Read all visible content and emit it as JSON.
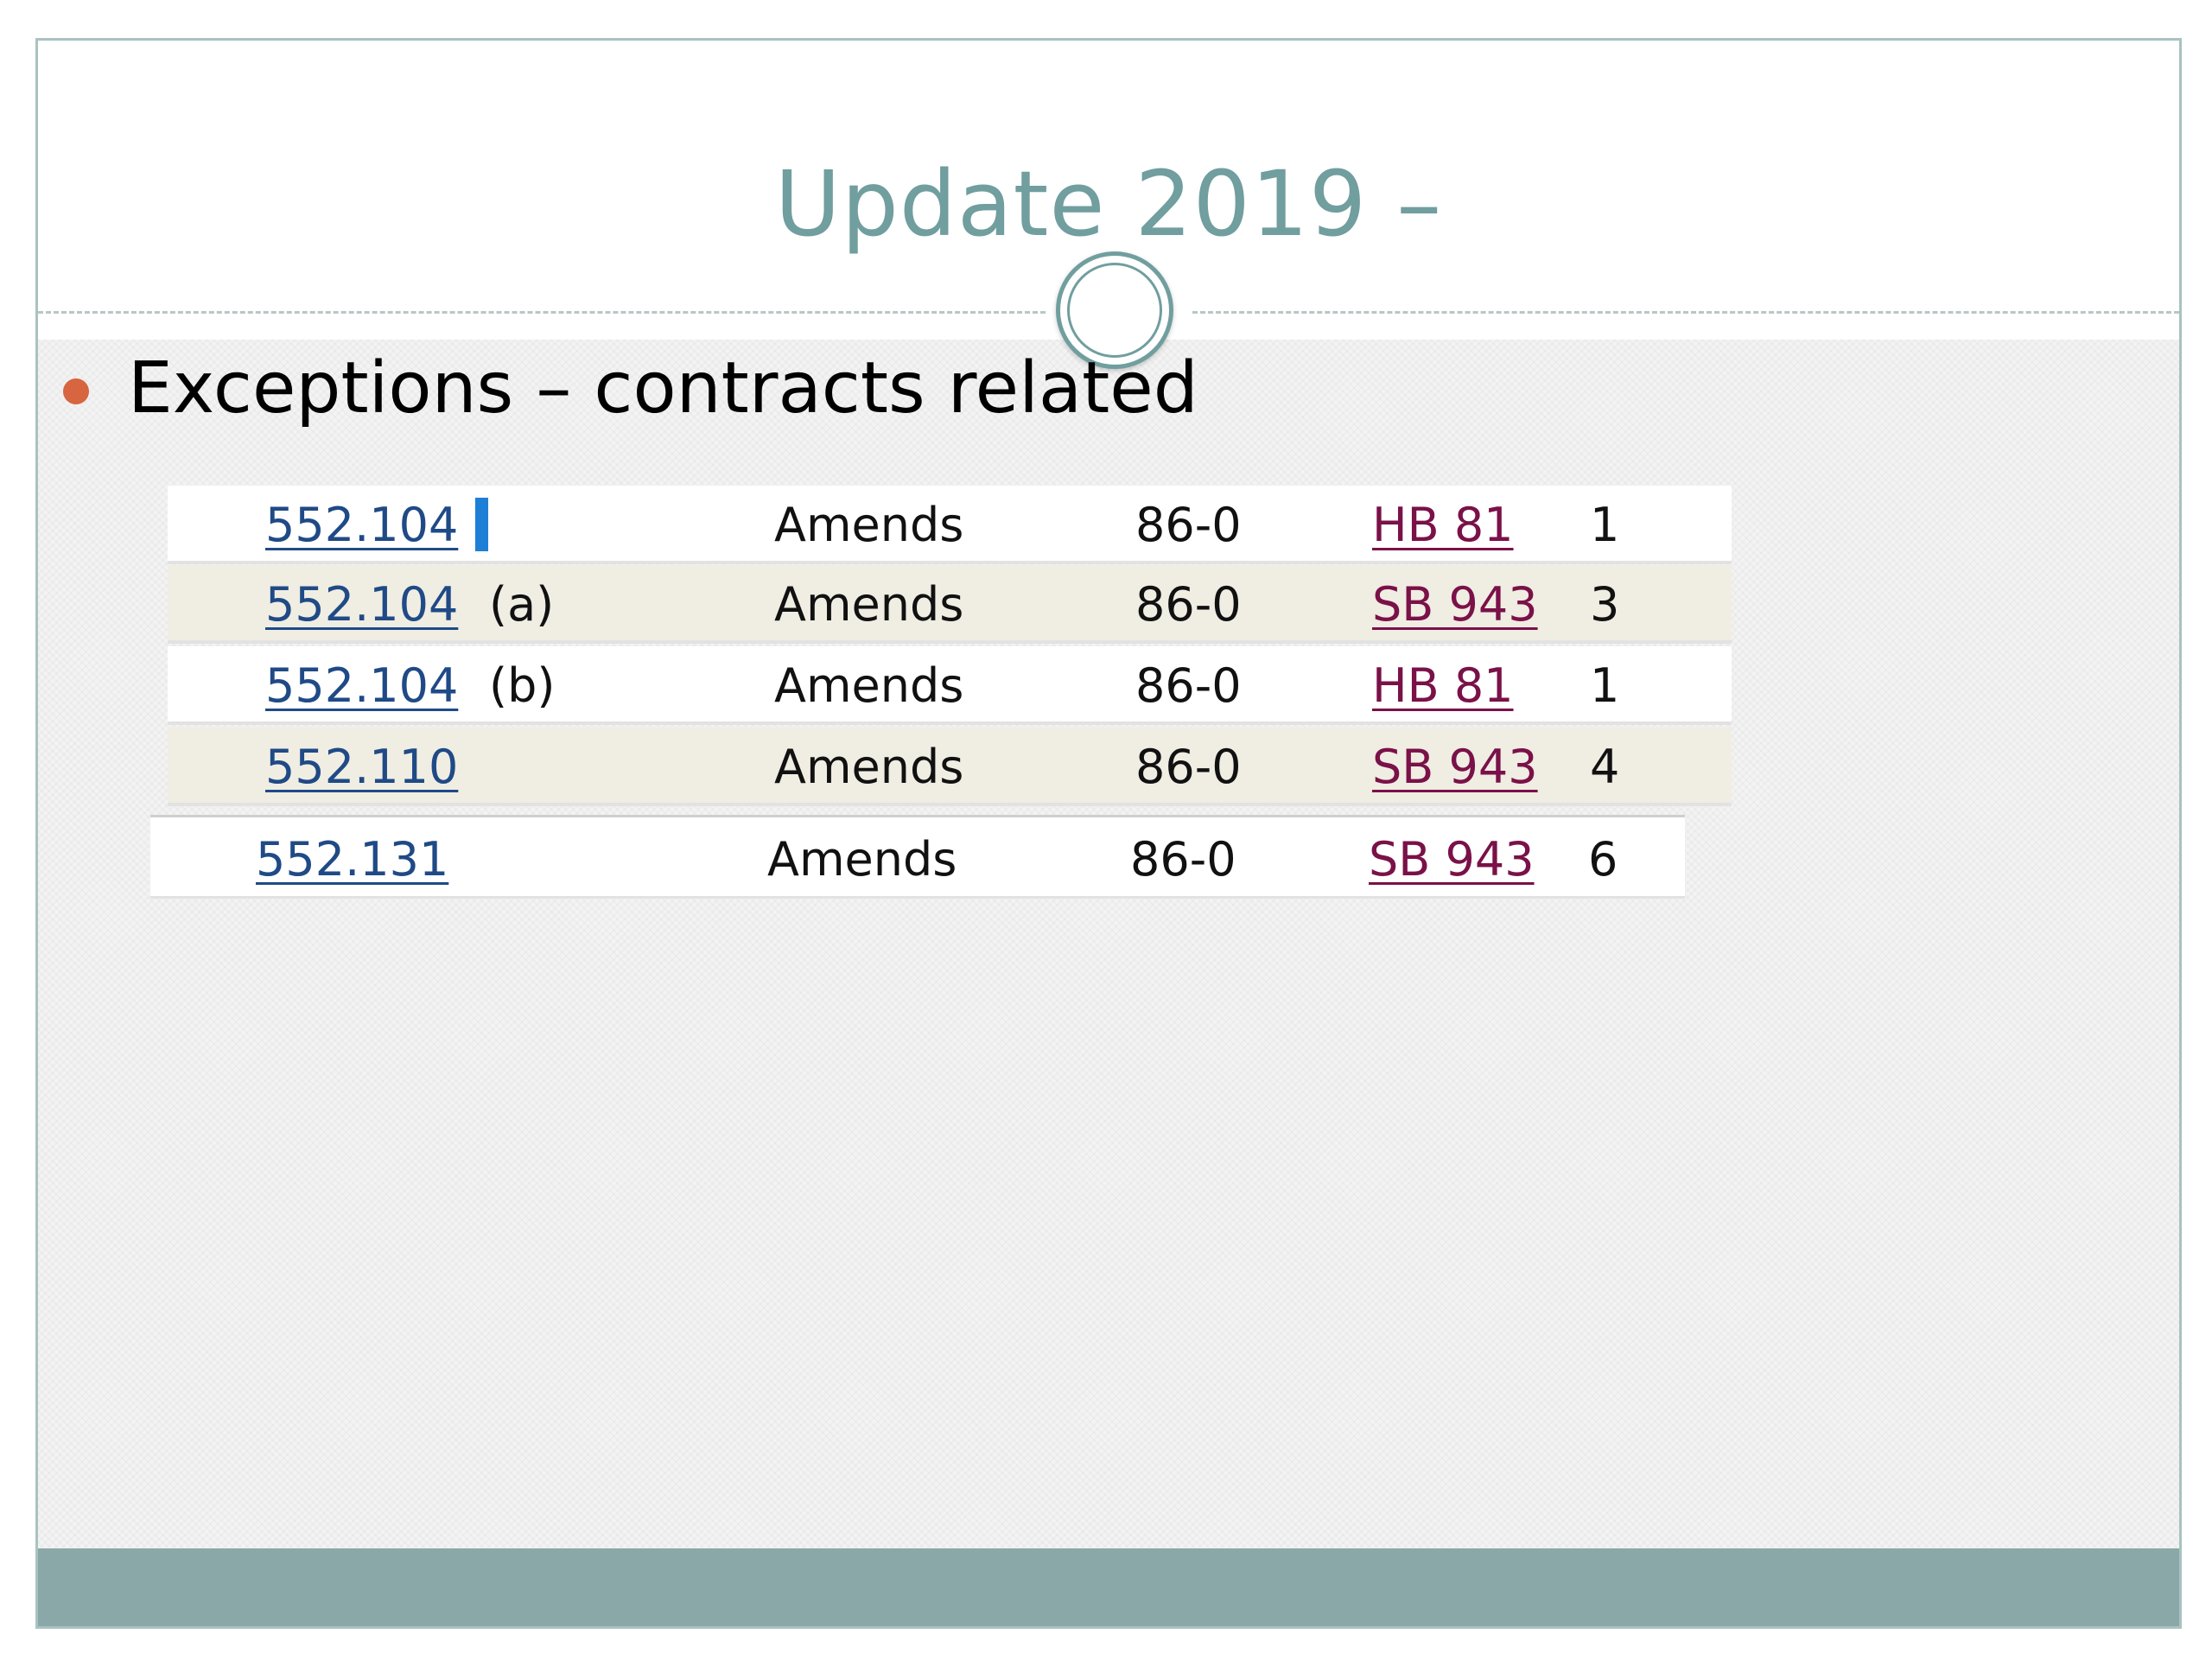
{
  "slide": {
    "title": "Update 2019 –",
    "bullet": "Exceptions – contracts related"
  },
  "table": {
    "rows": [
      {
        "section": "552.104",
        "sub": "",
        "action": "Amends",
        "vote": "86-0",
        "bill": "HB 81",
        "num": "1"
      },
      {
        "section": "552.104",
        "sub": "(a)",
        "action": "Amends",
        "vote": "86-0",
        "bill": "SB 943",
        "num": "3"
      },
      {
        "section": "552.104",
        "sub": "(b)",
        "action": "Amends",
        "vote": "86-0",
        "bill": "HB 81",
        "num": "1"
      },
      {
        "section": "552.110",
        "sub": "",
        "action": "Amends",
        "vote": "86-0",
        "bill": "SB 943",
        "num": "4"
      },
      {
        "section": "552.131",
        "sub": "",
        "action": "Amends",
        "vote": "86-0",
        "bill": "SB 943",
        "num": "6"
      }
    ]
  },
  "colors": {
    "title": "#719e9e",
    "bullet": "#d7653f",
    "section_link": "#1f4a86",
    "bill_link": "#7a1148",
    "row_alt": "#f0ede3",
    "footer": "#8aa8a8"
  }
}
